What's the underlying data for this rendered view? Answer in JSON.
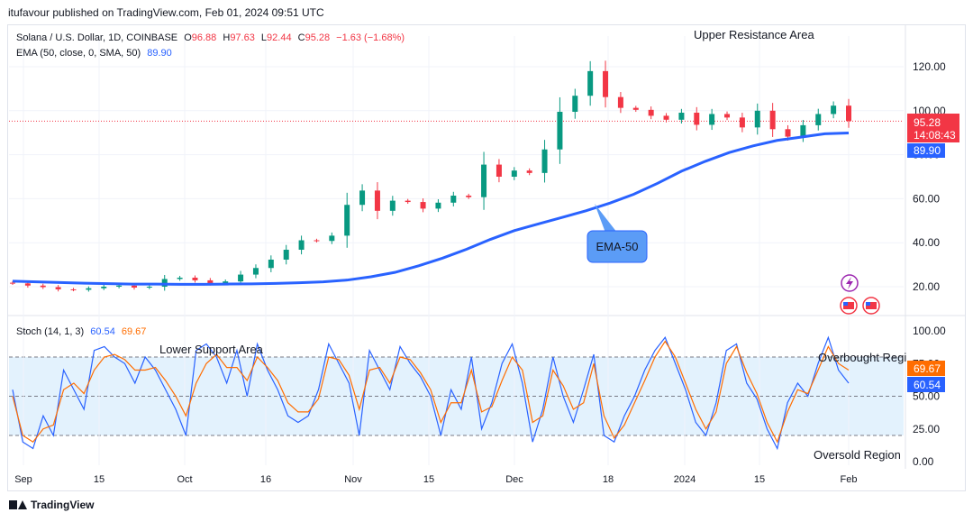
{
  "header": {
    "published": "itufavour published on TradingView.com, Feb 01, 2024 09:51 UTC"
  },
  "main_legend": {
    "symbol": "Solana / U.S. Dollar, 1D, COINBASE",
    "open_label": "O",
    "open": "96.88",
    "high_label": "H",
    "high": "97.63",
    "low_label": "L",
    "low": "92.44",
    "close_label": "C",
    "close": "95.28",
    "change": "−1.63 (−1.68%)",
    "ema_label": "EMA (50, close, 0, SMA, 50)",
    "ema_value": "89.90"
  },
  "stoch_legend": {
    "label": "Stoch (14, 1, 3)",
    "k_value": "60.54",
    "d_value": "69.67"
  },
  "annotations": {
    "upper_resistance": "Upper Resistance Area",
    "lower_support": "Lower Support Area",
    "overbought": "Overbought Regi",
    "oversold": "Oversold Region",
    "ema_callout": "EMA-50"
  },
  "price_badges": {
    "price": "95.28",
    "countdown": "14:08:43",
    "ema": "89.90"
  },
  "stoch_badges": {
    "d": "69.67",
    "k": "60.54"
  },
  "footer": {
    "brand": "TradingView"
  },
  "colors": {
    "up": "#089981",
    "down": "#f23645",
    "ema": "#2962ff",
    "stoch_k": "#2962ff",
    "stoch_d": "#ff6d00",
    "band": "#e3f2fd"
  },
  "chart_data": [
    {
      "type": "candlestick",
      "title": "Solana / U.S. Dollar, 1D, COINBASE",
      "x_ticks": [
        "Sep",
        "15",
        "Oct",
        "16",
        "Nov",
        "15",
        "Dec",
        "18",
        "2024",
        "15",
        "Feb"
      ],
      "y_ticks": [
        20,
        40,
        60,
        80,
        100,
        120
      ],
      "ylim": [
        8,
        132
      ],
      "grid": true,
      "series": [
        {
          "name": "EMA (50, close, 0, SMA, 50)",
          "values": [
            22.5,
            22.2,
            21.9,
            21.6,
            21.4,
            21.2,
            21.2,
            21.1,
            21.1,
            21.2,
            21.3,
            21.5,
            21.8,
            22.2,
            23.0,
            24.5,
            26.5,
            29.5,
            33.0,
            37.0,
            41.5,
            45.5,
            48.5,
            51.5,
            54.5,
            58.0,
            62.0,
            67.0,
            72.5,
            77.0,
            81.0,
            84.0,
            86.5,
            88.0,
            89.5,
            89.9
          ]
        },
        {
          "name": "Price",
          "closes_approx": [
            21.5,
            20.5,
            19.8,
            18.8,
            18.6,
            19.3,
            20.0,
            20.5,
            19.6,
            20.0,
            23.5,
            24.1,
            22.9,
            21.6,
            22.4,
            25.5,
            28.5,
            32.3,
            36.8,
            41.1,
            40.8,
            43.2,
            57.2,
            63.7,
            54.5,
            59.1,
            58.5,
            55.5,
            58.2,
            61.4,
            60.7,
            75.5,
            70.0,
            72.8,
            71.7,
            82.4,
            99.5,
            106.8,
            118.0,
            106.2,
            101.3,
            100.4,
            97.7,
            95.9,
            99.1,
            93.6,
            98.5,
            96.9,
            92.4,
            100.0,
            91.6,
            88.2,
            93.4,
            98.5,
            102.3,
            95.3
          ]
        }
      ]
    },
    {
      "type": "line",
      "title": "Stoch (14, 1, 3)",
      "y_ticks": [
        0,
        25,
        50,
        75,
        100
      ],
      "ylim": [
        0,
        100
      ],
      "bands": {
        "overbought": 80,
        "middle": 50,
        "oversold": 20
      },
      "series": [
        {
          "name": "%K",
          "values": [
            55,
            15,
            10,
            35,
            20,
            70,
            55,
            40,
            85,
            88,
            80,
            75,
            60,
            80,
            70,
            55,
            40,
            20,
            85,
            90,
            80,
            60,
            85,
            50,
            90,
            70,
            55,
            35,
            30,
            35,
            55,
            90,
            75,
            60,
            20,
            85,
            70,
            55,
            88,
            75,
            65,
            50,
            20,
            55,
            40,
            80,
            25,
            45,
            75,
            90,
            60,
            15,
            40,
            80,
            50,
            30,
            55,
            82,
            20,
            15,
            35,
            50,
            70,
            85,
            95,
            75,
            55,
            30,
            20,
            45,
            85,
            90,
            60,
            48,
            25,
            10,
            45,
            60,
            50,
            75,
            95,
            70,
            60
          ]
        },
        {
          "name": "%D",
          "values": [
            50,
            20,
            15,
            25,
            28,
            55,
            60,
            52,
            70,
            80,
            82,
            78,
            70,
            70,
            72,
            62,
            50,
            35,
            60,
            75,
            82,
            72,
            72,
            62,
            80,
            72,
            62,
            45,
            38,
            38,
            48,
            80,
            78,
            66,
            40,
            70,
            72,
            60,
            80,
            78,
            68,
            55,
            30,
            45,
            45,
            70,
            38,
            42,
            62,
            80,
            70,
            30,
            35,
            70,
            58,
            40,
            45,
            75,
            35,
            18,
            28,
            45,
            62,
            80,
            92,
            80,
            60,
            40,
            25,
            38,
            75,
            88,
            68,
            52,
            30,
            15,
            38,
            55,
            52,
            70,
            88,
            75,
            70
          ]
        }
      ]
    }
  ]
}
